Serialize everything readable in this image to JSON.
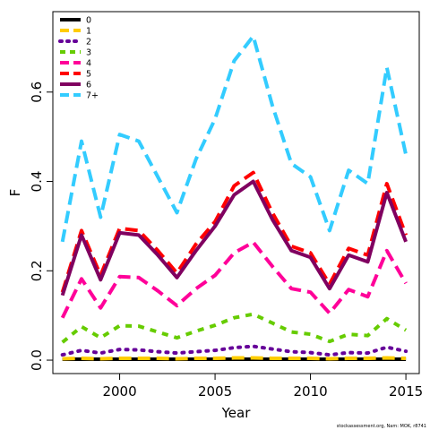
{
  "chart_data": {
    "type": "line",
    "title": "",
    "xlabel": "Year",
    "ylabel": "F",
    "xlim": [
      1996.5,
      2015.7
    ],
    "ylim": [
      -0.03,
      0.78
    ],
    "x_ticks": [
      2000,
      2005,
      2010,
      2015
    ],
    "y_ticks": [
      0.0,
      0.2,
      0.4,
      0.6
    ],
    "y_tick_labels": [
      "0.0",
      "0.2",
      "0.4",
      "0.6"
    ],
    "grid": false,
    "legend_position": "top-left",
    "credit": "stockassessment.org, Nam: MOK, r8741",
    "x": [
      1997,
      1998,
      1999,
      2000,
      2001,
      2002,
      2003,
      2004,
      2005,
      2006,
      2007,
      2008,
      2009,
      2010,
      2011,
      2012,
      2013,
      2014,
      2015
    ],
    "series": [
      {
        "name": "0",
        "color": "#000000",
        "dash": "solid",
        "values": [
          0.002,
          0.002,
          0.002,
          0.002,
          0.002,
          0.002,
          0.002,
          0.002,
          0.002,
          0.002,
          0.002,
          0.002,
          0.002,
          0.002,
          0.002,
          0.002,
          0.002,
          0.002,
          0.002
        ]
      },
      {
        "name": "1",
        "color": "#FFCC00",
        "dash": "long",
        "values": [
          0.003,
          0.004,
          0.003,
          0.004,
          0.004,
          0.004,
          0.003,
          0.004,
          0.004,
          0.005,
          0.005,
          0.004,
          0.004,
          0.004,
          0.003,
          0.004,
          0.004,
          0.005,
          0.004
        ]
      },
      {
        "name": "2",
        "color": "#660099",
        "dash": "dot",
        "values": [
          0.012,
          0.022,
          0.016,
          0.024,
          0.023,
          0.019,
          0.016,
          0.019,
          0.022,
          0.028,
          0.031,
          0.025,
          0.019,
          0.017,
          0.012,
          0.017,
          0.016,
          0.029,
          0.02
        ]
      },
      {
        "name": "3",
        "color": "#66CC00",
        "dash": "short",
        "values": [
          0.04,
          0.075,
          0.05,
          0.077,
          0.076,
          0.063,
          0.05,
          0.065,
          0.078,
          0.095,
          0.103,
          0.083,
          0.063,
          0.058,
          0.042,
          0.058,
          0.055,
          0.093,
          0.067
        ]
      },
      {
        "name": "4",
        "color": "#FF0099",
        "dash": "long",
        "values": [
          0.095,
          0.182,
          0.117,
          0.187,
          0.185,
          0.155,
          0.122,
          0.16,
          0.19,
          0.24,
          0.264,
          0.21,
          0.16,
          0.152,
          0.105,
          0.158,
          0.142,
          0.245,
          0.172
        ]
      },
      {
        "name": "5",
        "color": "#FF0000",
        "dash": "long",
        "values": [
          0.152,
          0.29,
          0.19,
          0.295,
          0.29,
          0.245,
          0.195,
          0.26,
          0.31,
          0.39,
          0.42,
          0.33,
          0.255,
          0.24,
          0.17,
          0.25,
          0.235,
          0.395,
          0.28
        ]
      },
      {
        "name": "6",
        "color": "#800060",
        "dash": "solid",
        "values": [
          0.145,
          0.28,
          0.18,
          0.285,
          0.28,
          0.235,
          0.185,
          0.245,
          0.3,
          0.37,
          0.4,
          0.315,
          0.245,
          0.23,
          0.16,
          0.235,
          0.22,
          0.375,
          0.265
        ]
      },
      {
        "name": "7+",
        "color": "#33CCFF",
        "dash": "long",
        "values": [
          0.265,
          0.49,
          0.32,
          0.505,
          0.49,
          0.41,
          0.33,
          0.45,
          0.54,
          0.67,
          0.725,
          0.57,
          0.44,
          0.41,
          0.29,
          0.425,
          0.395,
          0.655,
          0.46
        ]
      }
    ]
  }
}
